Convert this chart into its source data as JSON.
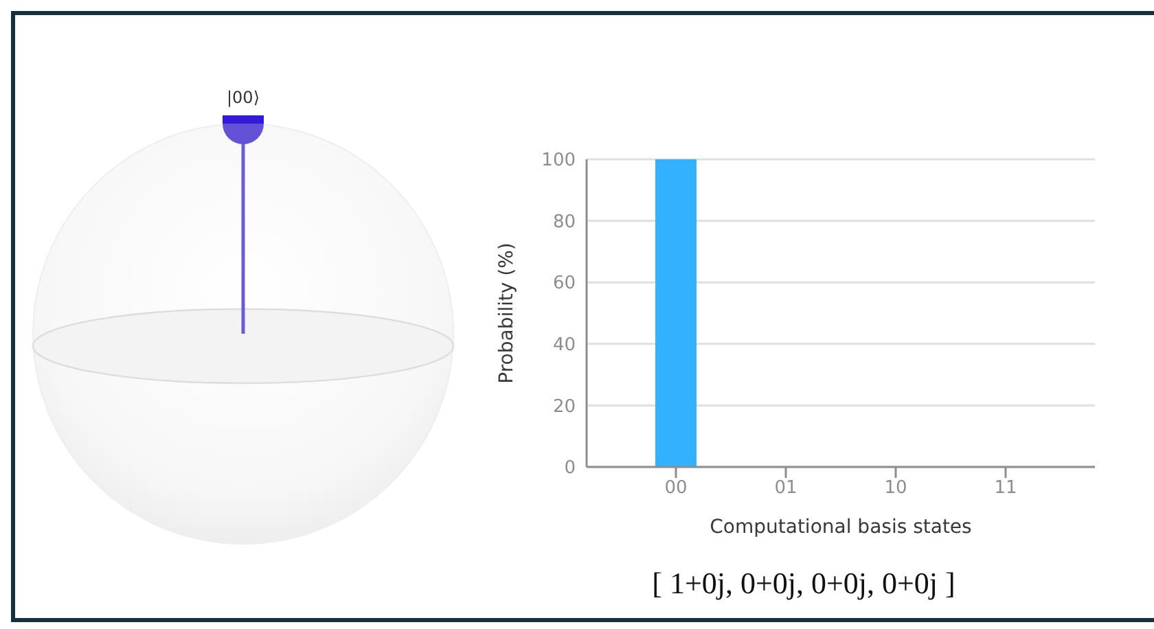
{
  "chart_data": {
    "type": "bar",
    "xlabel": "Computational basis states",
    "ylabel": "Probability (%)",
    "categories": [
      "00",
      "01",
      "10",
      "11"
    ],
    "values": [
      100,
      0,
      0,
      0
    ],
    "color": "#33b1ff",
    "ylim": [
      0,
      100
    ],
    "yticks": [
      0,
      20,
      40,
      60,
      80,
      100
    ],
    "grid": "y",
    "annotations": [
      "|00⟩",
      "[ 1+0j, 0+0j, 0+0j, 0+0j ]"
    ]
  }
}
